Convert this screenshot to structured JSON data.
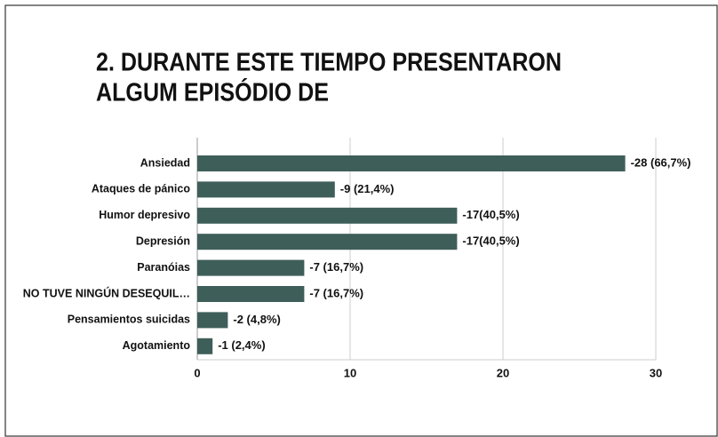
{
  "chart_data": {
    "type": "bar",
    "orientation": "horizontal",
    "title": [
      "2. DURANTE ESTE TIEMPO PRESENTARON",
      "ALGUM EPISÓDIO DE"
    ],
    "categories": [
      "Ansiedad",
      "Ataques de pánico",
      "Humor depresivo",
      "Depresión",
      "Paranóias",
      "NO TUVE NINGÚN DESEQUIL…",
      "Pensamientos suicidas",
      "Agotamiento"
    ],
    "values": [
      28,
      9,
      17,
      17,
      7,
      7,
      2,
      1
    ],
    "value_labels": [
      "-28 (66,7%)",
      "-9 (21,4%)",
      "-17(40,5%)",
      "-17(40,5%)",
      "-7 (16,7%)",
      "-7 (16,7%)",
      "-2 (4,8%)",
      "-1 (2,4%)"
    ],
    "color": "#3e5e59",
    "xlim": [
      0,
      30
    ],
    "xticks": [
      0,
      10,
      20,
      30
    ],
    "grid": true
  }
}
